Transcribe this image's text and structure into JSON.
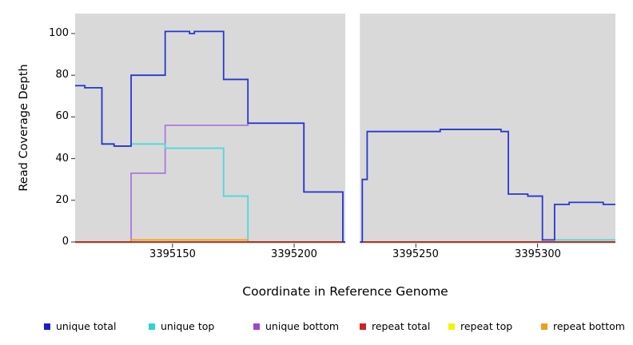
{
  "chart_data": {
    "type": "line",
    "style": "step",
    "title": "",
    "xlabel": "Coordinate in Reference Genome",
    "ylabel": "Read Coverage Depth",
    "xlim": [
      3395110,
      3395332
    ],
    "ylim": [
      0,
      110
    ],
    "xticks": [
      3395150,
      3395200,
      3395250,
      3395300
    ],
    "xtick_labels": [
      "3395150",
      "3395200",
      "3395250",
      "3395300"
    ],
    "yticks": [
      0,
      20,
      40,
      60,
      80,
      100
    ],
    "ytick_labels": [
      "0",
      "20",
      "40",
      "60",
      "80",
      "100"
    ],
    "panel_bg": "#d9d9d9",
    "grid": false,
    "legend_position": "bottom",
    "gap": {
      "x_start": 3395221,
      "x_end": 3395227
    },
    "series": [
      {
        "name": "unique bottom",
        "color": "#ab79dc",
        "steps": [
          [
            3395110,
            0
          ],
          [
            3395133,
            33
          ],
          [
            3395147,
            56
          ],
          [
            3395181,
            57
          ],
          [
            3395204,
            24
          ],
          [
            3395220,
            0
          ]
        ]
      },
      {
        "name": "unique top",
        "color": "#4fd8dc",
        "steps": [
          [
            3395110,
            75
          ],
          [
            3395114,
            74
          ],
          [
            3395121,
            47
          ],
          [
            3395126,
            46
          ],
          [
            3395133,
            47
          ],
          [
            3395147,
            45
          ],
          [
            3395171,
            22
          ],
          [
            3395181,
            0
          ],
          [
            3395302,
            1
          ]
        ]
      },
      {
        "name": "repeat top",
        "color": "#f2ef1d",
        "steps": [
          [
            3395110,
            0
          ]
        ]
      },
      {
        "name": "repeat bottom",
        "color": "#f2a21e",
        "steps": [
          [
            3395110,
            0
          ],
          [
            3395133,
            1
          ],
          [
            3395181,
            0
          ]
        ]
      },
      {
        "name": "repeat total",
        "color": "#a82424",
        "steps": [
          [
            3395110,
            0
          ]
        ]
      },
      {
        "name": "unique total",
        "color": "#2936cf",
        "steps": [
          [
            3395110,
            75
          ],
          [
            3395114,
            74
          ],
          [
            3395121,
            47
          ],
          [
            3395126,
            46
          ],
          [
            3395133,
            80
          ],
          [
            3395147,
            101
          ],
          [
            3395157,
            100
          ],
          [
            3395159,
            101
          ],
          [
            3395171,
            78
          ],
          [
            3395181,
            57
          ],
          [
            3395204,
            24
          ],
          [
            3395220,
            0
          ],
          [
            3395228,
            30
          ],
          [
            3395230,
            53
          ],
          [
            3395260,
            54
          ],
          [
            3395285,
            53
          ],
          [
            3395288,
            23
          ],
          [
            3395296,
            22
          ],
          [
            3395302,
            1
          ],
          [
            3395307,
            18
          ],
          [
            3395313,
            19
          ],
          [
            3395327,
            18
          ]
        ]
      }
    ],
    "legend": [
      {
        "label": "unique total",
        "color": "#1c1ccd"
      },
      {
        "label": "unique top",
        "color": "#2fd3d3"
      },
      {
        "label": "unique bottom",
        "color": "#9747d1"
      },
      {
        "label": "repeat total",
        "color": "#cc2222"
      },
      {
        "label": "repeat top",
        "color": "#f4f400"
      },
      {
        "label": "repeat bottom",
        "color": "#f29c1f"
      }
    ]
  }
}
